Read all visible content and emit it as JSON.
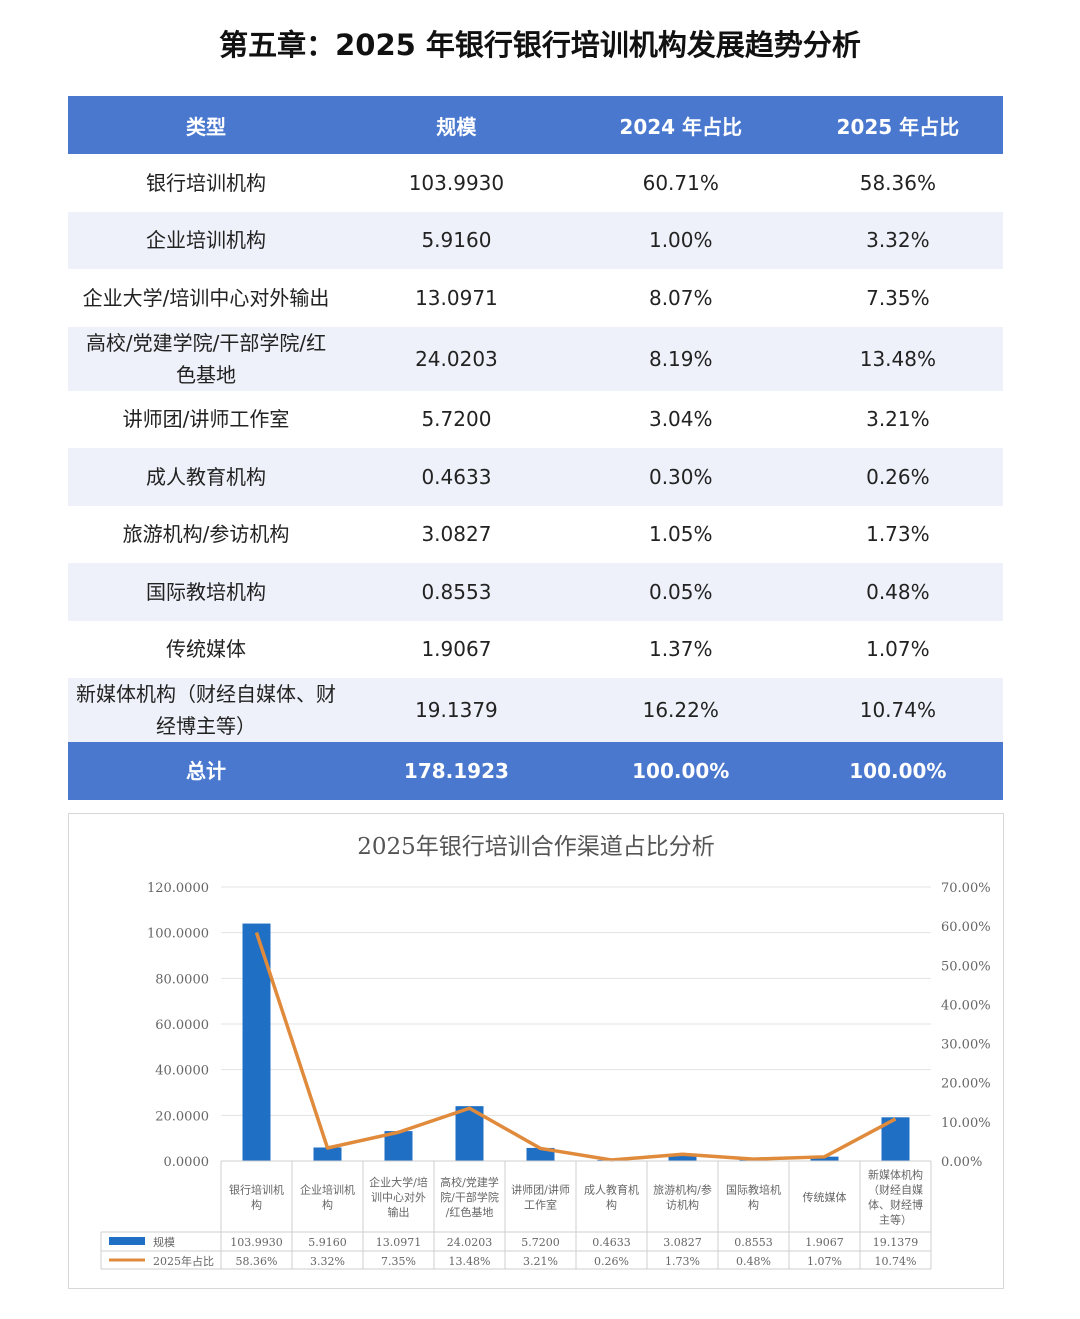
{
  "page": {
    "title": "第五章：2025 年银行银行培训机构发展趋势分析"
  },
  "table": {
    "headers": [
      "类型",
      "规模",
      "2024 年占比",
      "2025 年占比"
    ],
    "rows": [
      {
        "type": "银行培训机构",
        "scale": "103.9930",
        "p2024": "60.71%",
        "p2025": "58.36%"
      },
      {
        "type": "企业培训机构",
        "scale": "5.9160",
        "p2024": "1.00%",
        "p2025": "3.32%"
      },
      {
        "type": "企业大学/培训中心对外输出",
        "scale": "13.0971",
        "p2024": "8.07%",
        "p2025": "7.35%"
      },
      {
        "type": "高校/党建学院/干部学院/红色基地",
        "scale": "24.0203",
        "p2024": "8.19%",
        "p2025": "13.48%"
      },
      {
        "type": "讲师团/讲师工作室",
        "scale": "5.7200",
        "p2024": "3.04%",
        "p2025": "3.21%"
      },
      {
        "type": "成人教育机构",
        "scale": "0.4633",
        "p2024": "0.30%",
        "p2025": "0.26%"
      },
      {
        "type": "旅游机构/参访机构",
        "scale": "3.0827",
        "p2024": "1.05%",
        "p2025": "1.73%"
      },
      {
        "type": "国际教培机构",
        "scale": "0.8553",
        "p2024": "0.05%",
        "p2025": "0.48%"
      },
      {
        "type": "传统媒体",
        "scale": "1.9067",
        "p2024": "1.37%",
        "p2025": "1.07%"
      },
      {
        "type": "新媒体机构（财经自媒体、财经博主等）",
        "scale": "19.1379",
        "p2024": "16.22%",
        "p2025": "10.74%"
      }
    ],
    "total": {
      "type": "总计",
      "scale": "178.1923",
      "p2024": "100.00%",
      "p2025": "100.00%"
    }
  },
  "chart_data": {
    "type": "bar",
    "title": "2025年银行培训合作渠道占比分析",
    "categories": [
      "银行培训机构",
      "企业培训机构",
      "企业大学/培训中心对外输出",
      "高校/党建学院/干部学院/红色基地",
      "讲师团/讲师工作室",
      "成人教育机构",
      "旅游机构/参访机构",
      "国际教培机构",
      "传统媒体",
      "新媒体机构（财经自媒体、财经博主等）"
    ],
    "category_labels": [
      [
        "银行培训机",
        "构"
      ],
      [
        "企业培训机",
        "构"
      ],
      [
        "企业大学/培",
        "训中心对外",
        "输出"
      ],
      [
        "高校/党建学",
        "院/干部学院",
        "/红色基地"
      ],
      [
        "讲师团/讲师",
        "工作室"
      ],
      [
        "成人教育机",
        "构"
      ],
      [
        "旅游机构/参",
        "访机构"
      ],
      [
        "国际教培机",
        "构"
      ],
      [
        "传统媒体"
      ],
      [
        "新媒体机构",
        "（财经自媒",
        "体、财经博",
        "主等）"
      ]
    ],
    "series": [
      {
        "name": "规模",
        "kind": "bar",
        "axis": "left",
        "color": "#1f6fc5",
        "values": [
          103.993,
          5.916,
          13.0971,
          24.0203,
          5.72,
          0.4633,
          3.0827,
          0.8553,
          1.9067,
          19.1379
        ],
        "labels": [
          "103.9930",
          "5.9160",
          "13.0971",
          "24.0203",
          "5.7200",
          "0.4633",
          "3.0827",
          "0.8553",
          "1.9067",
          "19.1379"
        ]
      },
      {
        "name": "2025年占比",
        "kind": "line",
        "axis": "right",
        "color": "#e08a3c",
        "values": [
          58.36,
          3.32,
          7.35,
          13.48,
          3.21,
          0.26,
          1.73,
          0.48,
          1.07,
          10.74
        ],
        "labels": [
          "58.36%",
          "3.32%",
          "7.35%",
          "13.48%",
          "3.21%",
          "0.26%",
          "1.73%",
          "0.48%",
          "1.07%",
          "10.74%"
        ]
      }
    ],
    "ylim_left": [
      0,
      120
    ],
    "left_ticks": [
      "0.0000",
      "20.0000",
      "40.0000",
      "60.0000",
      "80.0000",
      "100.0000",
      "120.0000"
    ],
    "ylim_right": [
      0,
      70
    ],
    "right_ticks": [
      "0.00%",
      "10.00%",
      "20.00%",
      "30.00%",
      "40.00%",
      "50.00%",
      "60.00%",
      "70.00%"
    ],
    "grid": true,
    "legend": "data-table-bottom"
  }
}
